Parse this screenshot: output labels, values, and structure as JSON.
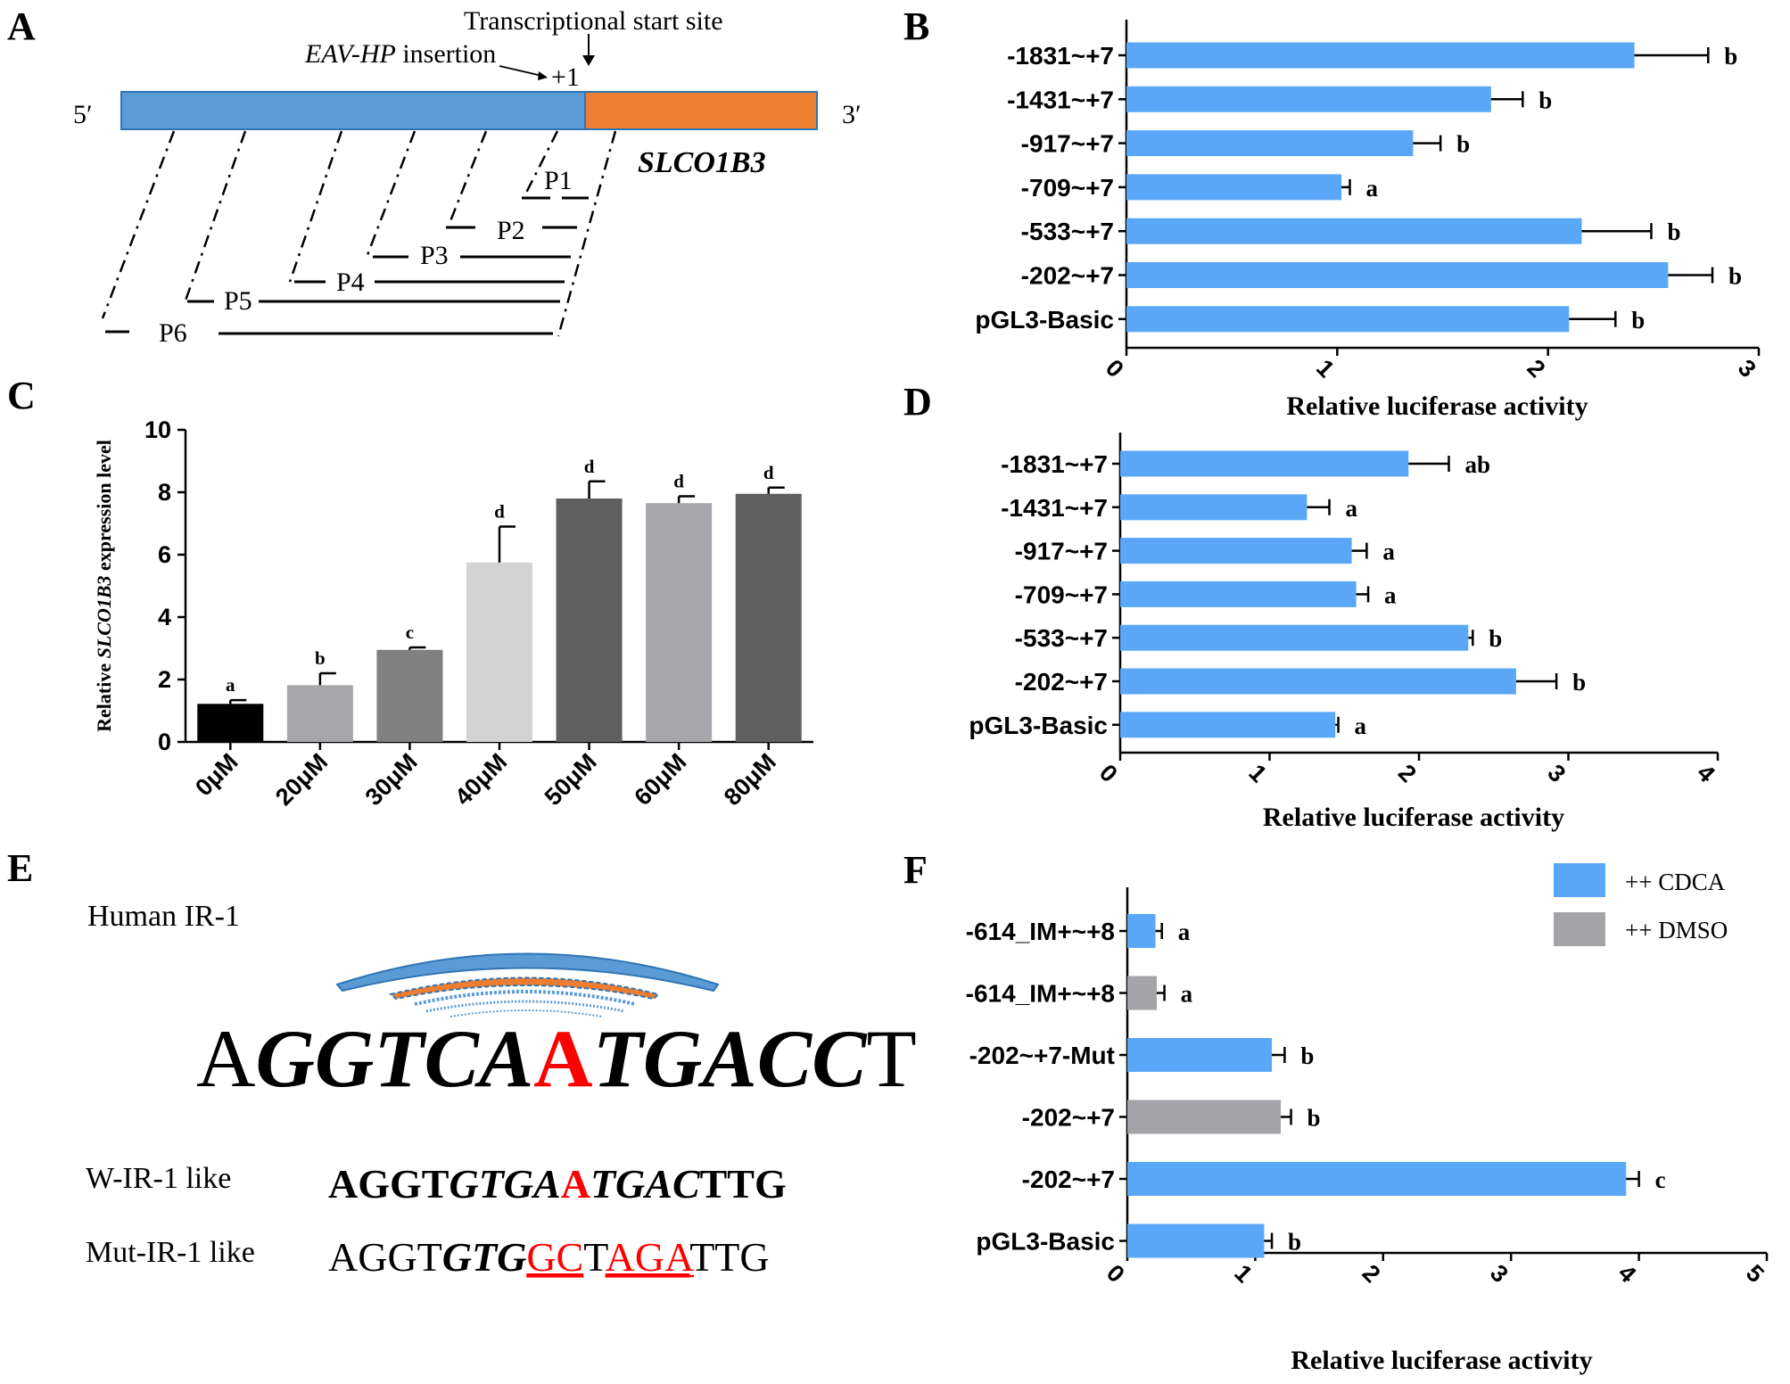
{
  "colors": {
    "blue": "#5ba7f7",
    "gray": "#a3a3a8",
    "promoter_blue": "#5b9bd5",
    "gene_orange": "#ed7d31",
    "red": "#ff0000",
    "c_black": "#000000",
    "c_gray1": "#a6a6ab",
    "c_gray2": "#808080",
    "c_light": "#d3d3d3",
    "c_dark": "#5f5f5f"
  },
  "panel_A": {
    "letter": "A",
    "tss_label": "Transcriptional start site",
    "insertion_label_italic": "EAV-HP",
    "insertion_label_rest": " insertion",
    "plus_one": "+1",
    "five_prime": "5′",
    "three_prime": "3′",
    "gene_name": "SLCO1B3",
    "fragments": [
      "P1",
      "P2",
      "P3",
      "P4",
      "P5",
      "P6"
    ]
  },
  "chart_data": [
    {
      "panel": "B",
      "type": "bar",
      "orientation": "horizontal",
      "categories": [
        "-1831~+7",
        "-1431~+7",
        "-917~+7",
        "-709~+7",
        "-533~+7",
        "-202~+7",
        "pGL3-Basic"
      ],
      "values": [
        2.41,
        1.73,
        1.36,
        1.02,
        2.16,
        2.57,
        2.1
      ],
      "errors": [
        0.35,
        0.15,
        0.13,
        0.04,
        0.33,
        0.21,
        0.22
      ],
      "significance": [
        "b",
        "b",
        "b",
        "a",
        "b",
        "b",
        "b"
      ],
      "xlabel": "Relative luciferase activity",
      "xlim": [
        0,
        3
      ],
      "xticks": [
        "0",
        "1",
        "2",
        "3"
      ]
    },
    {
      "panel": "C",
      "type": "bar",
      "orientation": "vertical",
      "categories": [
        "0μM",
        "20μM",
        "30μM",
        "40μM",
        "50μM",
        "60μM",
        "80μM"
      ],
      "values": [
        1.22,
        1.82,
        2.95,
        5.75,
        7.8,
        7.65,
        7.95
      ],
      "errors": [
        0.12,
        0.38,
        0.08,
        1.15,
        0.55,
        0.22,
        0.2
      ],
      "significance": [
        "a",
        "b",
        "c",
        "d",
        "d",
        "d",
        "d"
      ],
      "ylabel_prefix": "Relative ",
      "ylabel_italic": "SLCO1B3",
      "ylabel_suffix": " expression level",
      "ylim": [
        0,
        10
      ],
      "yticks": [
        "0",
        "2",
        "4",
        "6",
        "8",
        "10"
      ]
    },
    {
      "panel": "D",
      "type": "bar",
      "orientation": "horizontal",
      "categories": [
        "-1831~+7",
        "-1431~+7",
        "-917~+7",
        "-709~+7",
        "-533~+7",
        "-202~+7",
        "pGL3-Basic"
      ],
      "values": [
        1.93,
        1.25,
        1.55,
        1.58,
        2.33,
        2.65,
        1.44
      ],
      "errors": [
        0.27,
        0.15,
        0.1,
        0.08,
        0.03,
        0.27,
        0.02
      ],
      "significance": [
        "ab",
        "a",
        "a",
        "a",
        "b",
        "b",
        "a"
      ],
      "xlabel": "Relative luciferase activity",
      "xlim": [
        0,
        4
      ],
      "xticks": [
        "0",
        "1",
        "2",
        "3",
        "4"
      ]
    },
    {
      "panel": "F",
      "type": "bar",
      "orientation": "horizontal",
      "categories": [
        "-614_IM+~+8",
        "-614_IM+~+8",
        "-202~+7-Mut",
        "-202~+7",
        "-202~+7",
        "pGL3-Basic"
      ],
      "values": [
        0.22,
        0.23,
        1.13,
        1.2,
        3.9,
        1.07
      ],
      "errors": [
        0.05,
        0.06,
        0.1,
        0.08,
        0.1,
        0.06
      ],
      "groups": [
        "CDCA",
        "DMSO",
        "CDCA",
        "DMSO",
        "CDCA",
        "CDCA"
      ],
      "significance": [
        "a",
        "a",
        "b",
        "b",
        "c",
        "b"
      ],
      "legend": [
        "++ CDCA",
        "++ DMSO"
      ],
      "xlabel": "Relative luciferase activity",
      "xlim": [
        0,
        5
      ],
      "xticks": [
        "0",
        "1",
        "2",
        "3",
        "4",
        "5"
      ]
    }
  ],
  "panel_E": {
    "letter": "E",
    "title": "Human IR-1",
    "seq_segments": [
      {
        "t": "A",
        "italic": false,
        "red": false
      },
      {
        "t": "GGTCA",
        "italic": true,
        "red": false
      },
      {
        "t": "A",
        "italic": false,
        "red": true
      },
      {
        "t": "TGACC",
        "italic": true,
        "red": false
      },
      {
        "t": "T",
        "italic": false,
        "red": false
      }
    ],
    "w_label": "W-IR-1 like",
    "w_segments": [
      {
        "t": "AGGT",
        "italic": false,
        "red": false
      },
      {
        "t": "GTGA",
        "italic": true,
        "red": false
      },
      {
        "t": "A",
        "italic": false,
        "red": true
      },
      {
        "t": "TGAC",
        "italic": true,
        "red": false
      },
      {
        "t": "TTG",
        "italic": false,
        "red": false
      }
    ],
    "mut_label": "Mut-IR-1 like",
    "mut_segments": [
      {
        "t": "AGGT",
        "italic": false,
        "bold": false,
        "red": false,
        "u": false
      },
      {
        "t": "GTG",
        "italic": true,
        "bold": true,
        "red": false,
        "u": false
      },
      {
        "t": "GC",
        "italic": false,
        "bold": false,
        "red": true,
        "u": true
      },
      {
        "t": "T",
        "italic": false,
        "bold": false,
        "red": false,
        "u": false
      },
      {
        "t": "AGA",
        "italic": false,
        "bold": false,
        "red": true,
        "u": true
      },
      {
        "t": "TTG",
        "italic": false,
        "bold": false,
        "red": false,
        "u": false
      }
    ]
  },
  "letters": {
    "B": "B",
    "C": "C",
    "D": "D",
    "F": "F"
  }
}
